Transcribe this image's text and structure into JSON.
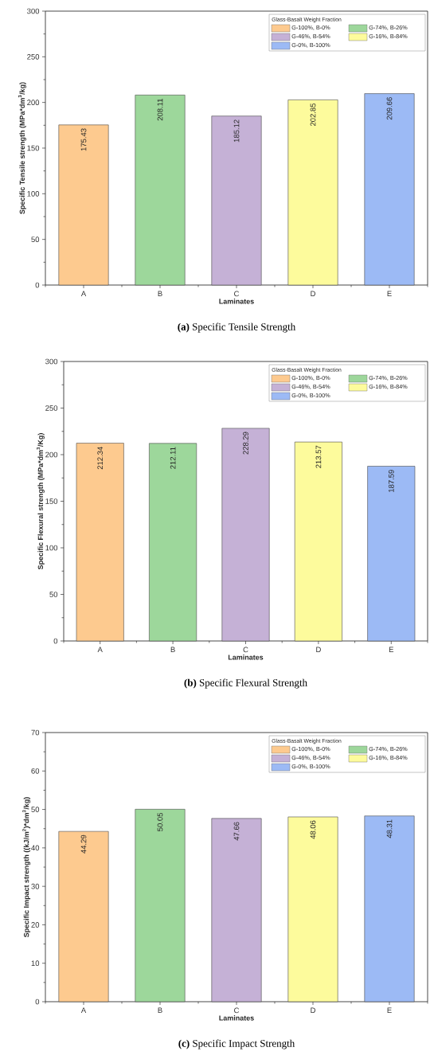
{
  "chart_data": [
    {
      "type": "bar",
      "title": "**(a)** Specific Tensile Strength",
      "xlabel": "Laminates",
      "ylabel": "Specific Tensile strength (MPa*dm$^{3}$/kg)",
      "legend_title": "Glass-Basalt Weight Fraction",
      "legend": "top right",
      "data_labels": true,
      "categories": [
        "A",
        "B",
        "C",
        "D",
        "E"
      ],
      "series": [
        {
          "name": "G-100%, B-0%",
          "color": "#fdca8f",
          "values": [
            175.43,
            null,
            null,
            null,
            null
          ]
        },
        {
          "name": "G-74%, B-26%",
          "color": "#9dd79b",
          "values": [
            null,
            208.11,
            null,
            null,
            null
          ]
        },
        {
          "name": "G-46%, B-54%",
          "color": "#c5b1d6",
          "values": [
            null,
            null,
            185.12,
            null,
            null
          ]
        },
        {
          "name": "G-16%, B-84%",
          "color": "#fdfb9c",
          "values": [
            null,
            null,
            null,
            202.85,
            null
          ]
        },
        {
          "name": "G-0%, B-100%",
          "color": "#9cbaf5",
          "values": [
            null,
            null,
            null,
            null,
            209.66
          ]
        }
      ],
      "ylim": [
        0,
        300
      ],
      "yticks": [
        0,
        50,
        100,
        150,
        200,
        250,
        300
      ]
    },
    {
      "type": "bar",
      "title": "**(b)** Specific Flexural Strength",
      "xlabel": "Laminates",
      "ylabel": "Specific Flexural strength (MPa*dm$^{3}$/Kg)",
      "legend_title": "Glass-Basalt Weight Fraction",
      "legend": "top right",
      "data_labels": true,
      "categories": [
        "A",
        "B",
        "C",
        "D",
        "E"
      ],
      "series": [
        {
          "name": "G-100%, B-0%",
          "color": "#fdca8f",
          "values": [
            212.34,
            null,
            null,
            null,
            null
          ]
        },
        {
          "name": "G-74%, B-26%",
          "color": "#9dd79b",
          "values": [
            null,
            212.11,
            null,
            null,
            null
          ]
        },
        {
          "name": "G-46%, B-54%",
          "color": "#c5b1d6",
          "values": [
            null,
            null,
            228.29,
            null,
            null
          ]
        },
        {
          "name": "G-16%, B-84%",
          "color": "#fdfb9c",
          "values": [
            null,
            null,
            null,
            213.57,
            null
          ]
        },
        {
          "name": "G-0%, B-100%",
          "color": "#9cbaf5",
          "values": [
            null,
            null,
            null,
            null,
            187.59
          ]
        }
      ],
      "ylim": [
        0,
        300
      ],
      "yticks": [
        0,
        50,
        100,
        150,
        200,
        250,
        300
      ]
    },
    {
      "type": "bar",
      "title": "**(c)** Specific Impact Strength",
      "xlabel": "Laminates",
      "ylabel": "Specific Impact strength ((kJ/m$^{2}$)*dm$^{3}$/kg)",
      "legend_title": "Glass-Basalt Weight Fraction",
      "legend": "top right",
      "data_labels": true,
      "categories": [
        "A",
        "B",
        "C",
        "D",
        "E"
      ],
      "series": [
        {
          "name": "G-100%, B-0%",
          "color": "#fdca8f",
          "values": [
            44.29,
            null,
            null,
            null,
            null
          ]
        },
        {
          "name": "G-74%, B-26%",
          "color": "#9dd79b",
          "values": [
            null,
            50.05,
            null,
            null,
            null
          ]
        },
        {
          "name": "G-46%, B-54%",
          "color": "#c5b1d6",
          "values": [
            null,
            null,
            47.66,
            null,
            null
          ]
        },
        {
          "name": "G-16%, B-84%",
          "color": "#fdfb9c",
          "values": [
            null,
            null,
            null,
            48.06,
            null
          ]
        },
        {
          "name": "G-0%, B-100%",
          "color": "#9cbaf5",
          "values": [
            null,
            null,
            null,
            null,
            48.31
          ]
        }
      ],
      "ylim": [
        0,
        70
      ],
      "yticks": [
        0,
        10,
        20,
        30,
        40,
        50,
        60,
        70
      ]
    }
  ]
}
